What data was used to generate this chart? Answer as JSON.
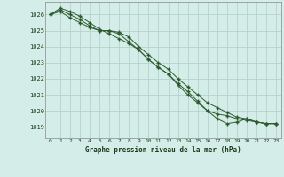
{
  "title": "Graphe pression niveau de la mer (hPa)",
  "background_color": "#d4ede8",
  "plot_bg_color": "#d4ede8",
  "grid_color": "#b0ccc8",
  "line_color": "#2d5a2d",
  "marker_color": "#2d5a2d",
  "ylim": [
    1018.3,
    1026.8
  ],
  "xlim": [
    -0.5,
    23.5
  ],
  "yticks": [
    1019,
    1020,
    1021,
    1022,
    1023,
    1024,
    1025,
    1026
  ],
  "xticks": [
    0,
    1,
    2,
    3,
    4,
    5,
    6,
    7,
    8,
    9,
    10,
    11,
    12,
    13,
    14,
    15,
    16,
    17,
    18,
    19,
    20,
    21,
    22,
    23
  ],
  "series": [
    [
      1026.0,
      1026.2,
      1025.8,
      1025.5,
      1025.2,
      1025.0,
      1025.0,
      1024.8,
      1024.3,
      1023.8,
      1023.2,
      1022.7,
      1022.3,
      1021.6,
      1021.0,
      1020.5,
      1020.0,
      1019.8,
      1019.7,
      1019.5,
      1019.4,
      1019.3,
      1019.2,
      1019.2
    ],
    [
      1026.0,
      1026.4,
      1026.2,
      1025.9,
      1025.5,
      1025.1,
      1024.8,
      1024.5,
      1024.2,
      1023.8,
      1023.2,
      1022.7,
      1022.3,
      1021.7,
      1021.2,
      1020.6,
      1020.0,
      1019.5,
      1019.2,
      1019.3,
      1019.5,
      1019.3,
      1019.2,
      1019.2
    ],
    [
      1026.0,
      1026.3,
      1026.0,
      1025.7,
      1025.3,
      1025.0,
      1025.0,
      1024.9,
      1024.6,
      1024.0,
      1023.5,
      1023.0,
      1022.6,
      1022.0,
      1021.5,
      1021.0,
      1020.5,
      1020.2,
      1019.9,
      1019.6,
      1019.5,
      1019.3,
      1019.2,
      1019.2
    ]
  ]
}
